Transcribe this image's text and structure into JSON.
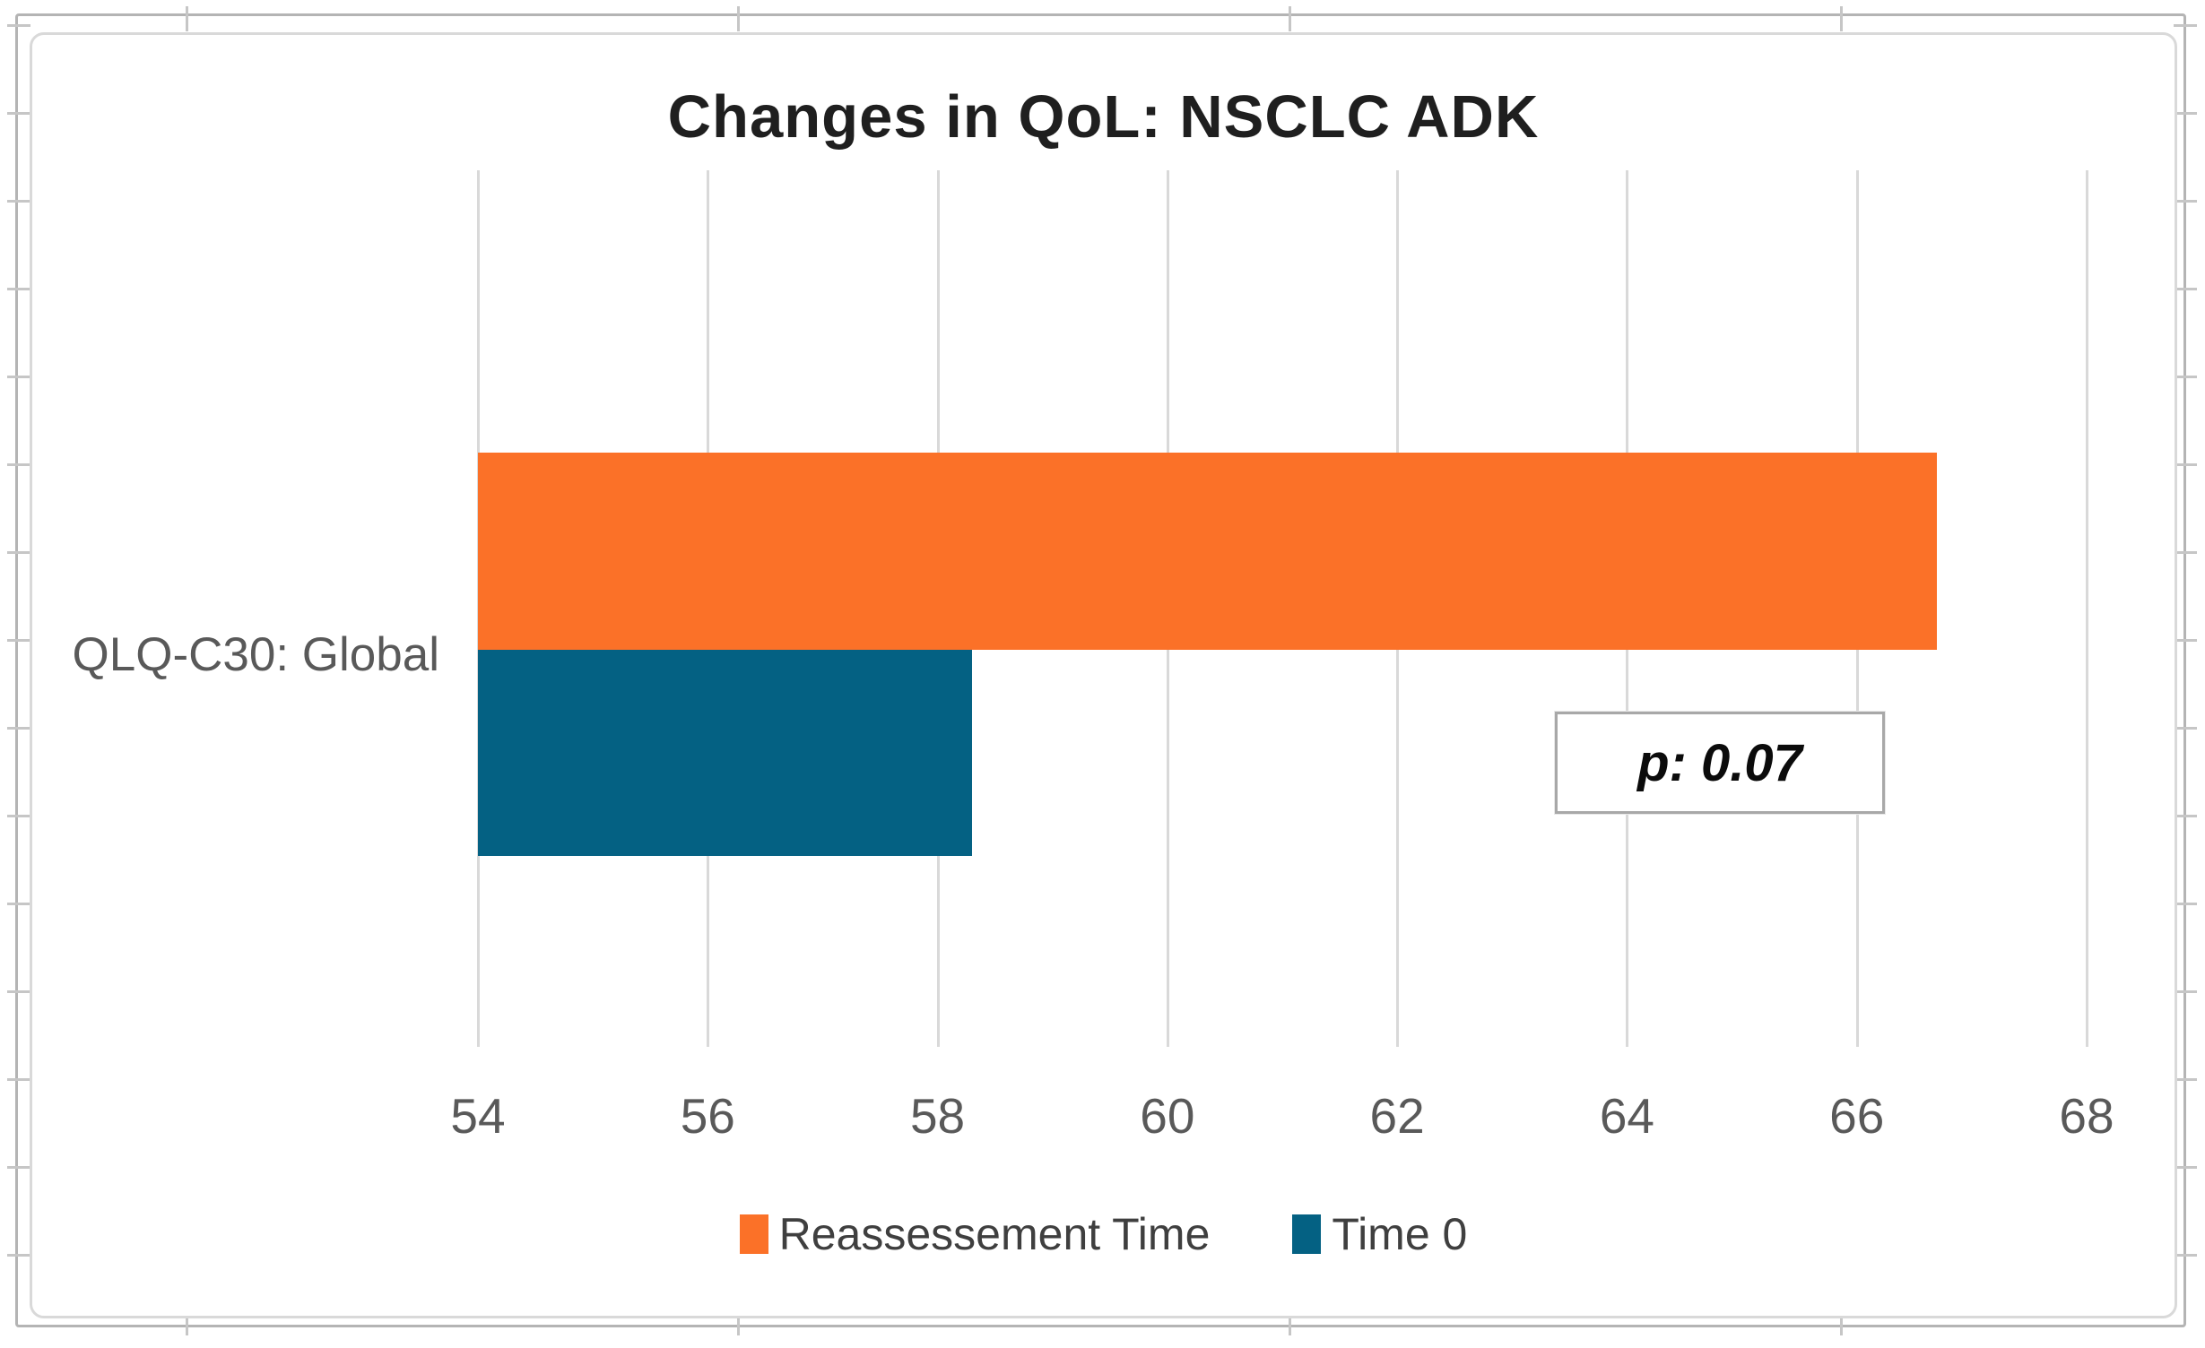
{
  "chart_data": {
    "type": "bar",
    "orientation": "horizontal",
    "title": "Changes in QoL: NSCLC ADK",
    "categories": [
      "QLQ-C30: Global"
    ],
    "series": [
      {
        "name": "Reassessement Time",
        "color": "#fb7128",
        "values": [
          66.7
        ]
      },
      {
        "name": "Time 0",
        "color": "#046183",
        "values": [
          58.3
        ]
      }
    ],
    "xlim": [
      54,
      68
    ],
    "x_ticks": [
      "54",
      "56",
      "58",
      "60",
      "62",
      "64",
      "66",
      "68"
    ],
    "grid": true,
    "legend_position": "bottom",
    "annotation": "p: 0.07"
  },
  "title": "Changes in QoL: NSCLC ADK",
  "category_label": "QLQ-C30: Global",
  "annotation": {
    "text": "p: 0.07"
  },
  "legend": [
    {
      "label": "Reassessement Time",
      "color": "#fb7128"
    },
    {
      "label": "Time 0",
      "color": "#046183"
    }
  ]
}
